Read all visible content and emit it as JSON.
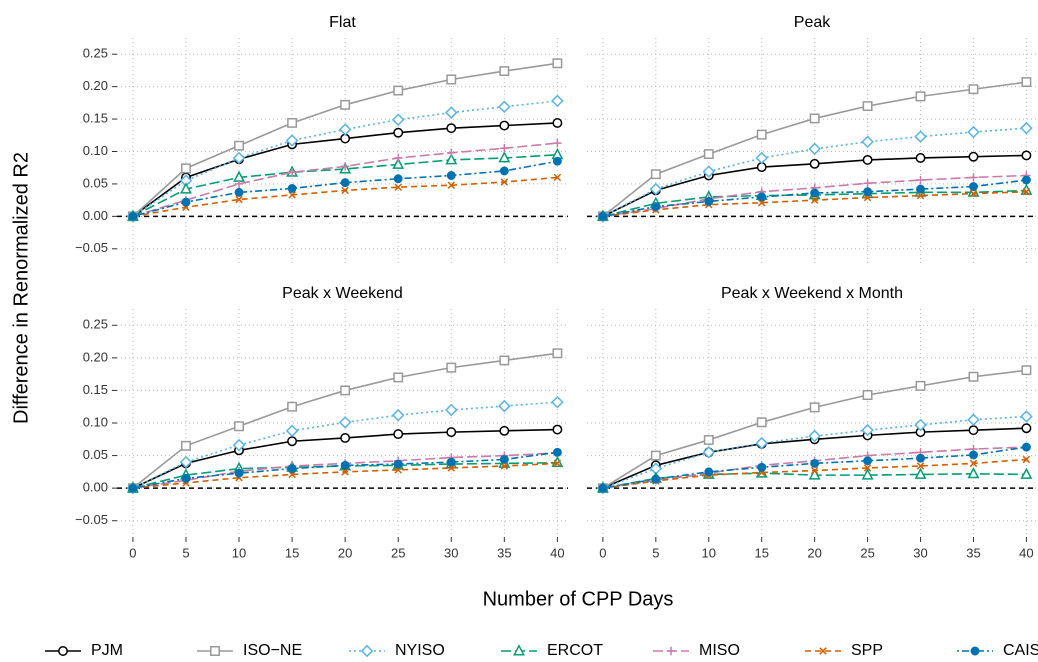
{
  "xlabel": "Number of CPP Days",
  "ylabel": "Difference in Renormalized R2",
  "chart_data": [
    {
      "type": "line",
      "title": "Flat",
      "x": [
        0,
        5,
        10,
        15,
        20,
        25,
        30,
        35,
        40
      ],
      "xlim": [
        -1.5,
        41
      ],
      "ylim": [
        -0.075,
        0.275
      ],
      "xticks": [
        0,
        5,
        10,
        15,
        20,
        25,
        30,
        35,
        40
      ],
      "xtick_labels": false,
      "ytick_labels": true,
      "yticks": [
        0.25,
        {
          "value": 0.2,
          "label": "0.20"
        },
        0.15,
        {
          "value": 0.1,
          "label": "0.10"
        },
        0.05,
        {
          "value": 0,
          "label": "0.00"
        },
        {
          "value": -0.05,
          "label": "−0.05"
        }
      ],
      "grid": true,
      "reference_line": 0,
      "series": [
        {
          "name": "PJM",
          "color": "#000000",
          "marker": "circle",
          "line": "solid",
          "values": [
            0,
            0.06,
            0.088,
            0.111,
            0.12,
            0.129,
            0.136,
            0.14,
            0.144
          ]
        },
        {
          "name": "ISO−NE",
          "color": "#999999",
          "marker": "square",
          "line": "solid",
          "values": [
            0,
            0.074,
            0.109,
            0.144,
            0.172,
            0.194,
            0.211,
            0.224,
            0.236
          ]
        },
        {
          "name": "NYISO",
          "color": "#56B4E9",
          "marker": "diamond",
          "line": "dotted",
          "values": [
            0,
            0.055,
            0.09,
            0.117,
            0.134,
            0.149,
            0.16,
            0.169,
            0.178
          ]
        },
        {
          "name": "ERCOT",
          "color": "#009E73",
          "marker": "triangle",
          "line": "longdash",
          "values": [
            0,
            0.042,
            0.06,
            0.068,
            0.073,
            0.08,
            0.087,
            0.09,
            0.095
          ]
        },
        {
          "name": "MISO",
          "color": "#CC79A7",
          "marker": "plus",
          "line": "longdash",
          "values": [
            0,
            0.025,
            0.05,
            0.068,
            0.077,
            0.09,
            0.098,
            0.105,
            0.113
          ]
        },
        {
          "name": "SPP",
          "color": "#D55E00",
          "marker": "cross",
          "line": "dashed",
          "values": [
            0,
            0.014,
            0.026,
            0.033,
            0.04,
            0.045,
            0.048,
            0.053,
            0.06
          ]
        },
        {
          "name": "CAISO",
          "color": "#0072B2",
          "marker": "dot",
          "line": "dotdash",
          "values": [
            0,
            0.022,
            0.037,
            0.043,
            0.052,
            0.058,
            0.063,
            0.07,
            0.085
          ]
        }
      ]
    },
    {
      "type": "line",
      "title": "Peak",
      "x": [
        0,
        5,
        10,
        15,
        20,
        25,
        30,
        35,
        40
      ],
      "xlim": [
        -1.5,
        41
      ],
      "ylim": [
        -0.075,
        0.275
      ],
      "xticks": [
        0,
        5,
        10,
        15,
        20,
        25,
        30,
        35,
        40
      ],
      "xtick_labels": false,
      "ytick_labels": false,
      "yticks": [
        0.25,
        0.2,
        0.15,
        0.1,
        0.05,
        0,
        -0.05
      ],
      "grid": true,
      "reference_line": 0,
      "series": [
        {
          "name": "PJM",
          "color": "#000000",
          "marker": "circle",
          "line": "solid",
          "values": [
            0,
            0.04,
            0.063,
            0.076,
            0.081,
            0.087,
            0.09,
            0.092,
            0.094
          ]
        },
        {
          "name": "ISO−NE",
          "color": "#999999",
          "marker": "square",
          "line": "solid",
          "values": [
            0,
            0.065,
            0.096,
            0.126,
            0.151,
            0.17,
            0.185,
            0.196,
            0.207
          ]
        },
        {
          "name": "NYISO",
          "color": "#56B4E9",
          "marker": "diamond",
          "line": "dotted",
          "values": [
            0,
            0.042,
            0.069,
            0.09,
            0.104,
            0.115,
            0.123,
            0.13,
            0.136
          ]
        },
        {
          "name": "ERCOT",
          "color": "#009E73",
          "marker": "triangle",
          "line": "longdash",
          "values": [
            0,
            0.02,
            0.03,
            0.032,
            0.033,
            0.035,
            0.037,
            0.037,
            0.04
          ]
        },
        {
          "name": "MISO",
          "color": "#CC79A7",
          "marker": "plus",
          "line": "longdash",
          "values": [
            0,
            0.012,
            0.027,
            0.038,
            0.044,
            0.051,
            0.056,
            0.06,
            0.063
          ]
        },
        {
          "name": "SPP",
          "color": "#D55E00",
          "marker": "cross",
          "line": "dashed",
          "values": [
            0,
            0.01,
            0.018,
            0.021,
            0.025,
            0.029,
            0.032,
            0.035,
            0.038
          ]
        },
        {
          "name": "CAISO",
          "color": "#0072B2",
          "marker": "dot",
          "line": "dotdash",
          "values": [
            0,
            0.015,
            0.023,
            0.03,
            0.036,
            0.038,
            0.042,
            0.046,
            0.056
          ]
        }
      ]
    },
    {
      "type": "line",
      "title": "Peak x Weekend",
      "x": [
        0,
        5,
        10,
        15,
        20,
        25,
        30,
        35,
        40
      ],
      "xlim": [
        -1.5,
        41
      ],
      "ylim": [
        -0.075,
        0.275
      ],
      "xticks": [
        0,
        5,
        10,
        15,
        20,
        25,
        30,
        35,
        40
      ],
      "xtick_labels": true,
      "ytick_labels": true,
      "yticks": [
        0.25,
        {
          "value": 0.2,
          "label": "0.20"
        },
        0.15,
        {
          "value": 0.1,
          "label": "0.10"
        },
        0.05,
        {
          "value": 0,
          "label": "0.00"
        },
        {
          "value": -0.05,
          "label": "−0.05"
        }
      ],
      "grid": true,
      "reference_line": 0,
      "series": [
        {
          "name": "PJM",
          "color": "#000000",
          "marker": "circle",
          "line": "solid",
          "values": [
            0,
            0.038,
            0.058,
            0.072,
            0.077,
            0.083,
            0.086,
            0.088,
            0.09
          ]
        },
        {
          "name": "ISO−NE",
          "color": "#999999",
          "marker": "square",
          "line": "solid",
          "values": [
            0,
            0.065,
            0.095,
            0.125,
            0.15,
            0.17,
            0.185,
            0.196,
            0.207
          ]
        },
        {
          "name": "NYISO",
          "color": "#56B4E9",
          "marker": "diamond",
          "line": "dotted",
          "values": [
            0,
            0.04,
            0.066,
            0.088,
            0.101,
            0.112,
            0.12,
            0.126,
            0.132
          ]
        },
        {
          "name": "ERCOT",
          "color": "#009E73",
          "marker": "triangle",
          "line": "longdash",
          "values": [
            0,
            0.02,
            0.03,
            0.032,
            0.034,
            0.035,
            0.037,
            0.038,
            0.039
          ]
        },
        {
          "name": "MISO",
          "color": "#CC79A7",
          "marker": "plus",
          "line": "longdash",
          "values": [
            0,
            0.012,
            0.026,
            0.034,
            0.038,
            0.042,
            0.047,
            0.05,
            0.054
          ]
        },
        {
          "name": "SPP",
          "color": "#D55E00",
          "marker": "cross",
          "line": "dashed",
          "values": [
            0,
            0.008,
            0.016,
            0.021,
            0.025,
            0.028,
            0.031,
            0.034,
            0.038
          ]
        },
        {
          "name": "CAISO",
          "color": "#0072B2",
          "marker": "dot",
          "line": "dotdash",
          "values": [
            0,
            0.015,
            0.023,
            0.03,
            0.035,
            0.037,
            0.04,
            0.044,
            0.055
          ]
        }
      ]
    },
    {
      "type": "line",
      "title": "Peak x Weekend x Month",
      "x": [
        0,
        5,
        10,
        15,
        20,
        25,
        30,
        35,
        40
      ],
      "xlim": [
        -1.5,
        41
      ],
      "ylim": [
        -0.075,
        0.275
      ],
      "xticks": [
        0,
        5,
        10,
        15,
        20,
        25,
        30,
        35,
        40
      ],
      "xtick_labels": true,
      "ytick_labels": false,
      "yticks": [
        0.25,
        0.2,
        0.15,
        0.1,
        0.05,
        0,
        -0.05
      ],
      "grid": true,
      "reference_line": 0,
      "series": [
        {
          "name": "PJM",
          "color": "#000000",
          "marker": "circle",
          "line": "solid",
          "values": [
            0,
            0.035,
            0.055,
            0.068,
            0.075,
            0.081,
            0.086,
            0.089,
            0.092
          ]
        },
        {
          "name": "ISO−NE",
          "color": "#999999",
          "marker": "square",
          "line": "solid",
          "values": [
            0,
            0.05,
            0.074,
            0.101,
            0.124,
            0.143,
            0.157,
            0.171,
            0.181
          ]
        },
        {
          "name": "NYISO",
          "color": "#56B4E9",
          "marker": "diamond",
          "line": "dotted",
          "values": [
            0,
            0.03,
            0.055,
            0.069,
            0.08,
            0.089,
            0.097,
            0.105,
            0.11
          ]
        },
        {
          "name": "ERCOT",
          "color": "#009E73",
          "marker": "triangle",
          "line": "longdash",
          "values": [
            0,
            0.015,
            0.021,
            0.023,
            0.02,
            0.02,
            0.021,
            0.022,
            0.021
          ]
        },
        {
          "name": "MISO",
          "color": "#CC79A7",
          "marker": "plus",
          "line": "longdash",
          "values": [
            0,
            0.012,
            0.023,
            0.035,
            0.042,
            0.05,
            0.055,
            0.06,
            0.063
          ]
        },
        {
          "name": "SPP",
          "color": "#D55E00",
          "marker": "cross",
          "line": "dashed",
          "values": [
            0,
            0.011,
            0.02,
            0.024,
            0.027,
            0.031,
            0.034,
            0.038,
            0.044
          ]
        },
        {
          "name": "CAISO",
          "color": "#0072B2",
          "marker": "dot",
          "line": "dotdash",
          "values": [
            0,
            0.014,
            0.025,
            0.032,
            0.038,
            0.042,
            0.046,
            0.051,
            0.063
          ]
        }
      ]
    }
  ]
}
